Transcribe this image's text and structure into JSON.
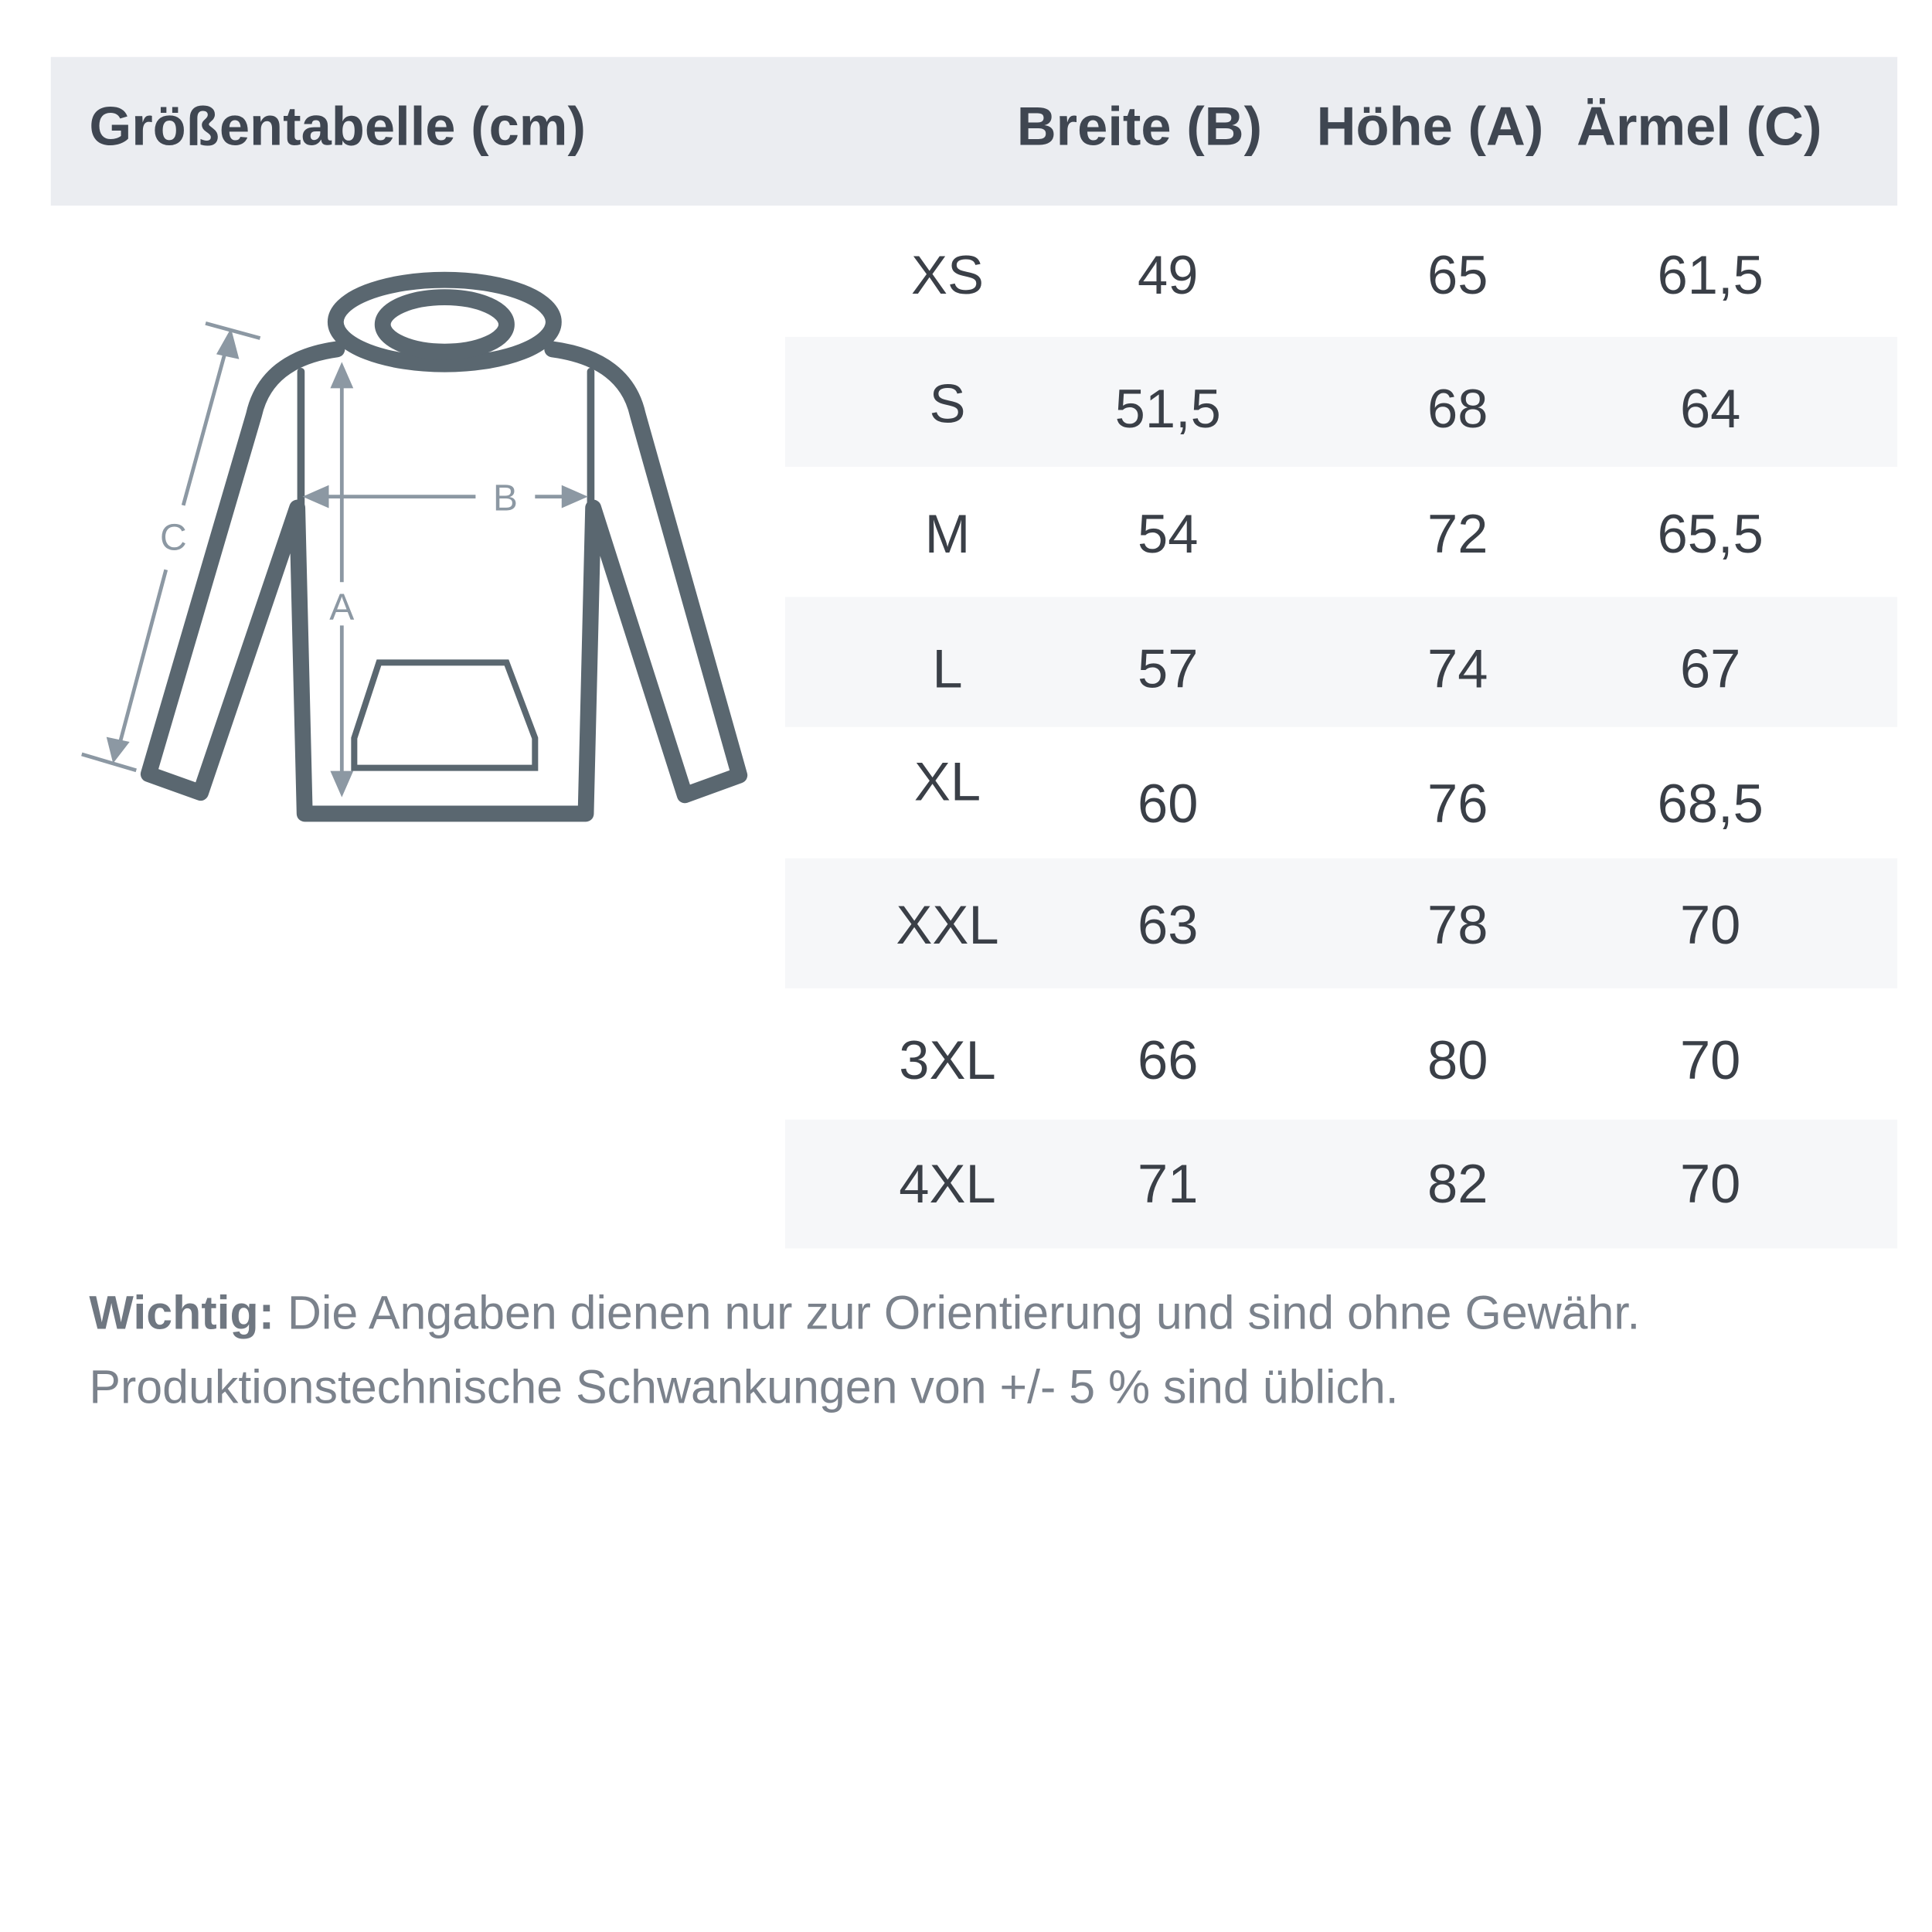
{
  "header": {
    "title": "Größentabelle (cm)",
    "columns": [
      "Breite (B)",
      "Höhe (A)",
      "Ärmel (C)"
    ]
  },
  "diagram": {
    "labels": {
      "a": "A",
      "b": "B",
      "c": "C"
    }
  },
  "rows": [
    {
      "size": "XS",
      "breite": "49",
      "hoehe": "65",
      "aermel": "61,5"
    },
    {
      "size": "S",
      "breite": "51,5",
      "hoehe": "68",
      "aermel": "64"
    },
    {
      "size": "M",
      "breite": "54",
      "hoehe": "72",
      "aermel": "65,5"
    },
    {
      "size": "L",
      "breite": "57",
      "hoehe": "74",
      "aermel": "67"
    },
    {
      "size": "XL",
      "breite": "60",
      "hoehe": "76",
      "aermel": "68,5"
    },
    {
      "size": "XXL",
      "breite": "63",
      "hoehe": "78",
      "aermel": "70"
    },
    {
      "size": "3XL",
      "breite": "66",
      "hoehe": "80",
      "aermel": "70"
    },
    {
      "size": "4XL",
      "breite": "71",
      "hoehe": "82",
      "aermel": "70"
    }
  ],
  "note": {
    "bold": "Wichtig:",
    "line1": " Die Angaben dienen nur zur Orientierung und sind ohne Gewähr.",
    "line2": "Produktionstechnische Schwankungen von +/- 5 % sind üblich."
  },
  "colors": {
    "header_bg": "#ebedf1",
    "row_alt": "#f6f7f9",
    "outline": "#5a6770",
    "measure": "#8c98a3"
  }
}
